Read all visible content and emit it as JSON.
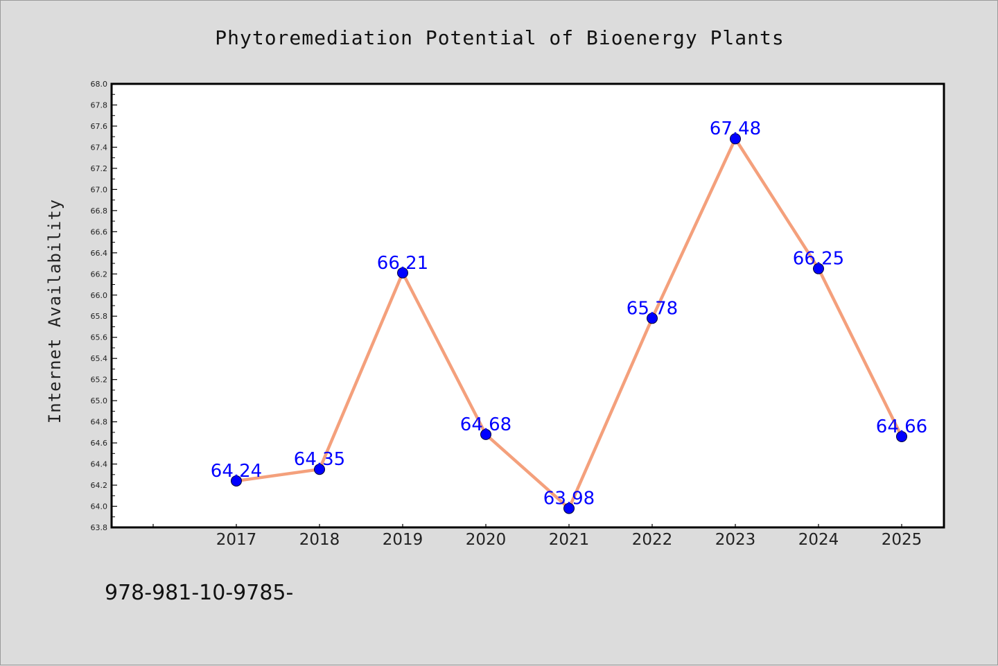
{
  "chart_data": {
    "type": "line",
    "title": "Phytoremediation Potential of Bioenergy Plants",
    "xlabel": "",
    "ylabel": "Internet Availability",
    "categories": [
      "2017",
      "2018",
      "2019",
      "2020",
      "2021",
      "2022",
      "2023",
      "2024",
      "2025"
    ],
    "series": [
      {
        "values": [
          64.24,
          64.35,
          66.21,
          64.68,
          63.98,
          65.78,
          67.48,
          66.25,
          64.66
        ]
      }
    ],
    "data_labels": [
      "64.24",
      "64.35",
      "66.21",
      "64.68",
      "63.98",
      "65.78",
      "67.48",
      "66.25",
      "64.66"
    ],
    "ylim": [
      63.8,
      68.0
    ],
    "y_ticks": [
      "63.8",
      "64.0",
      "64.2",
      "64.4",
      "64.6",
      "64.8",
      "65.0",
      "65.2",
      "65.4",
      "65.6",
      "65.8",
      "66.0",
      "66.2",
      "66.4",
      "66.6",
      "66.8",
      "67.0",
      "67.2",
      "67.4",
      "67.6",
      "67.8",
      "68.0"
    ],
    "grid": false,
    "colors": {
      "line": "#f4a07c",
      "marker": "#0000ff",
      "label": "#0000ff",
      "plot_background": "#ffffff",
      "figure_background": "#dcdcdc"
    }
  },
  "footnote": "978-981-10-9785-"
}
